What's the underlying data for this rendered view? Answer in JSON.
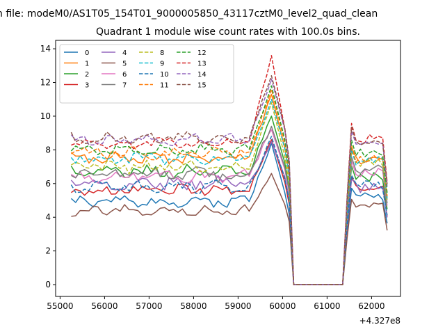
{
  "figure": {
    "suptitle": "n file: modeM0/AS1T05_154T01_9000005850_43117cztM0_level2_quad_clean",
    "title": "Quadrant 1 module wise count rates with 100.0s bins.",
    "offset_label": "+4.327e8"
  },
  "chart_data": {
    "type": "line",
    "title": "Quadrant 1 module wise count rates with 100.0s bins.",
    "xlabel": "",
    "ylabel": "",
    "x_offset": 432700000,
    "xlim": [
      54900,
      62650
    ],
    "ylim": [
      -0.7,
      14.5
    ],
    "x_ticks": [
      55000,
      56000,
      57000,
      58000,
      59000,
      60000,
      61000,
      62000
    ],
    "y_ticks": [
      0,
      2,
      4,
      6,
      8,
      10,
      12,
      14
    ],
    "grid": false,
    "legend": {
      "placement": "top-left",
      "columns": 4
    },
    "x_start": 55250,
    "x_step": 100,
    "gap": {
      "x_from": 60250,
      "x_to": 61350
    },
    "peak_x": 59750,
    "series": [
      {
        "name": "0",
        "color": "#1f77b4",
        "dash": "solid",
        "base": 4.9,
        "noise": 0.25,
        "peak": 8.4,
        "post": 5.2
      },
      {
        "name": "1",
        "color": "#ff7f0e",
        "dash": "solid",
        "base": 7.5,
        "noise": 0.25,
        "peak": 11.3,
        "post": 7.4
      },
      {
        "name": "2",
        "color": "#2ca02c",
        "dash": "solid",
        "base": 6.7,
        "noise": 0.3,
        "peak": 10.0,
        "post": 6.4
      },
      {
        "name": "3",
        "color": "#d62728",
        "dash": "solid",
        "base": 5.6,
        "noise": 0.25,
        "peak": 8.6,
        "post": 5.8
      },
      {
        "name": "4",
        "color": "#9467bd",
        "dash": "solid",
        "base": 6.0,
        "noise": 0.35,
        "peak": 8.5,
        "post": 5.7
      },
      {
        "name": "5",
        "color": "#8c564b",
        "dash": "solid",
        "base": 4.4,
        "noise": 0.25,
        "peak": 6.6,
        "post": 4.6
      },
      {
        "name": "6",
        "color": "#e377c2",
        "dash": "solid",
        "base": 6.4,
        "noise": 0.3,
        "peak": 9.2,
        "post": 6.7
      },
      {
        "name": "7",
        "color": "#7f7f7f",
        "dash": "solid",
        "base": 6.5,
        "noise": 0.35,
        "peak": 9.4,
        "post": 6.9
      },
      {
        "name": "8",
        "color": "#bcbd22",
        "dash": "dashed",
        "base": 7.0,
        "noise": 0.3,
        "peak": 10.8,
        "post": 7.2
      },
      {
        "name": "9",
        "color": "#17becf",
        "dash": "dashed",
        "base": 7.5,
        "noise": 0.3,
        "peak": 11.0,
        "post": 7.3
      },
      {
        "name": "10",
        "color": "#1f77b4",
        "dash": "dashed",
        "base": 5.8,
        "noise": 0.3,
        "peak": 8.8,
        "post": 5.9
      },
      {
        "name": "11",
        "color": "#ff7f0e",
        "dash": "dashed",
        "base": 7.8,
        "noise": 0.3,
        "peak": 11.6,
        "post": 7.5
      },
      {
        "name": "12",
        "color": "#2ca02c",
        "dash": "dashed",
        "base": 8.0,
        "noise": 0.25,
        "peak": 11.8,
        "post": 7.8
      },
      {
        "name": "13",
        "color": "#d62728",
        "dash": "dashed",
        "base": 8.4,
        "noise": 0.3,
        "peak": 13.6,
        "post": 8.7
      },
      {
        "name": "14",
        "color": "#9467bd",
        "dash": "dashed",
        "base": 8.6,
        "noise": 0.25,
        "peak": 12.2,
        "post": 8.3
      },
      {
        "name": "15",
        "color": "#8c564b",
        "dash": "dashed",
        "base": 8.7,
        "noise": 0.25,
        "peak": 12.4,
        "post": 8.5
      }
    ]
  }
}
